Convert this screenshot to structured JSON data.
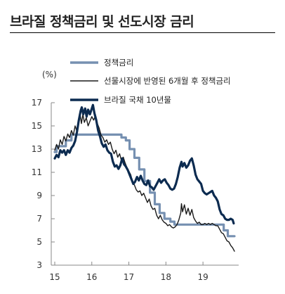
{
  "title": "브라질 정책금리 및 선도시장 금리",
  "chart_data": {
    "type": "line",
    "ylabel": "(%)",
    "ylim": [
      3,
      17
    ],
    "xlim": [
      2015.0,
      2019.85
    ],
    "yticks": [
      3,
      5,
      7,
      9,
      11,
      13,
      15,
      17
    ],
    "xticks": [
      {
        "value": 2015.0,
        "label": "15"
      },
      {
        "value": 2016.0,
        "label": "16"
      },
      {
        "value": 2017.0,
        "label": "17"
      },
      {
        "value": 2018.0,
        "label": "18"
      },
      {
        "value": 2019.0,
        "label": "19"
      }
    ],
    "grid": false,
    "legend_position": "top-center",
    "series": [
      {
        "name": "정책금리",
        "color": "#7690b1",
        "points": [
          [
            2015.0,
            12.75
          ],
          [
            2015.05,
            12.75
          ],
          [
            2015.05,
            13.25
          ],
          [
            2015.3,
            13.25
          ],
          [
            2015.3,
            13.75
          ],
          [
            2015.45,
            13.75
          ],
          [
            2015.45,
            14.25
          ],
          [
            2016.8,
            14.25
          ],
          [
            2016.8,
            14.0
          ],
          [
            2016.92,
            14.0
          ],
          [
            2016.92,
            13.75
          ],
          [
            2017.02,
            13.75
          ],
          [
            2017.02,
            13.0
          ],
          [
            2017.15,
            13.0
          ],
          [
            2017.15,
            12.25
          ],
          [
            2017.28,
            12.25
          ],
          [
            2017.28,
            11.25
          ],
          [
            2017.42,
            11.25
          ],
          [
            2017.42,
            10.25
          ],
          [
            2017.57,
            10.25
          ],
          [
            2017.57,
            9.25
          ],
          [
            2017.7,
            9.25
          ],
          [
            2017.7,
            8.25
          ],
          [
            2017.83,
            8.25
          ],
          [
            2017.83,
            7.5
          ],
          [
            2017.96,
            7.5
          ],
          [
            2017.96,
            7.0
          ],
          [
            2018.12,
            7.0
          ],
          [
            2018.12,
            6.75
          ],
          [
            2018.23,
            6.75
          ],
          [
            2018.23,
            6.5
          ],
          [
            2019.56,
            6.5
          ],
          [
            2019.56,
            6.0
          ],
          [
            2019.67,
            6.0
          ],
          [
            2019.67,
            5.5
          ],
          [
            2019.85,
            5.5
          ]
        ]
      },
      {
        "name": "선물시장에 반영된 6개월 후 정책금리",
        "color": "#1a1a1a",
        "points": [
          [
            2015.0,
            12.9
          ],
          [
            2015.05,
            13.4
          ],
          [
            2015.1,
            13.0
          ],
          [
            2015.15,
            13.8
          ],
          [
            2015.2,
            13.4
          ],
          [
            2015.25,
            14.1
          ],
          [
            2015.3,
            13.7
          ],
          [
            2015.35,
            14.3
          ],
          [
            2015.4,
            14.0
          ],
          [
            2015.45,
            14.6
          ],
          [
            2015.5,
            14.2
          ],
          [
            2015.55,
            15.0
          ],
          [
            2015.6,
            14.5
          ],
          [
            2015.65,
            15.7
          ],
          [
            2015.68,
            16.1
          ],
          [
            2015.72,
            15.2
          ],
          [
            2015.76,
            16.0
          ],
          [
            2015.8,
            15.3
          ],
          [
            2015.85,
            15.7
          ],
          [
            2015.9,
            15.0
          ],
          [
            2015.95,
            15.4
          ],
          [
            2016.0,
            15.8
          ],
          [
            2016.05,
            15.5
          ],
          [
            2016.1,
            15.9
          ],
          [
            2016.15,
            15.2
          ],
          [
            2016.2,
            14.8
          ],
          [
            2016.25,
            14.2
          ],
          [
            2016.3,
            14.0
          ],
          [
            2016.35,
            13.6
          ],
          [
            2016.4,
            13.8
          ],
          [
            2016.45,
            13.4
          ],
          [
            2016.5,
            13.6
          ],
          [
            2016.55,
            13.0
          ],
          [
            2016.6,
            12.6
          ],
          [
            2016.65,
            12.9
          ],
          [
            2016.7,
            12.3
          ],
          [
            2016.75,
            12.6
          ],
          [
            2016.8,
            12.0
          ],
          [
            2016.85,
            12.3
          ],
          [
            2016.9,
            11.8
          ],
          [
            2016.95,
            11.4
          ],
          [
            2017.0,
            11.1
          ],
          [
            2017.05,
            10.8
          ],
          [
            2017.1,
            10.2
          ],
          [
            2017.15,
            9.9
          ],
          [
            2017.2,
            9.5
          ],
          [
            2017.25,
            9.3
          ],
          [
            2017.3,
            9.4
          ],
          [
            2017.35,
            9.0
          ],
          [
            2017.4,
            9.2
          ],
          [
            2017.45,
            8.8
          ],
          [
            2017.5,
            8.4
          ],
          [
            2017.55,
            8.7
          ],
          [
            2017.6,
            8.1
          ],
          [
            2017.65,
            7.8
          ],
          [
            2017.7,
            7.9
          ],
          [
            2017.75,
            7.3
          ],
          [
            2017.8,
            7.0
          ],
          [
            2017.85,
            7.3
          ],
          [
            2017.9,
            6.9
          ],
          [
            2017.95,
            6.7
          ],
          [
            2018.0,
            6.6
          ],
          [
            2018.05,
            6.4
          ],
          [
            2018.1,
            6.5
          ],
          [
            2018.15,
            6.3
          ],
          [
            2018.2,
            6.2
          ],
          [
            2018.25,
            6.3
          ],
          [
            2018.3,
            6.5
          ],
          [
            2018.35,
            6.9
          ],
          [
            2018.4,
            7.5
          ],
          [
            2018.42,
            8.3
          ],
          [
            2018.45,
            7.6
          ],
          [
            2018.5,
            8.2
          ],
          [
            2018.55,
            7.4
          ],
          [
            2018.6,
            7.9
          ],
          [
            2018.65,
            7.3
          ],
          [
            2018.7,
            7.8
          ],
          [
            2018.75,
            7.1
          ],
          [
            2018.8,
            6.8
          ],
          [
            2018.85,
            6.6
          ],
          [
            2018.9,
            6.7
          ],
          [
            2018.95,
            6.5
          ],
          [
            2019.0,
            6.5
          ],
          [
            2019.05,
            6.6
          ],
          [
            2019.1,
            6.5
          ],
          [
            2019.15,
            6.6
          ],
          [
            2019.2,
            6.5
          ],
          [
            2019.25,
            6.6
          ],
          [
            2019.3,
            6.5
          ],
          [
            2019.35,
            6.4
          ],
          [
            2019.4,
            6.4
          ],
          [
            2019.45,
            6.1
          ],
          [
            2019.5,
            5.8
          ],
          [
            2019.55,
            5.7
          ],
          [
            2019.6,
            5.4
          ],
          [
            2019.65,
            5.1
          ],
          [
            2019.7,
            5.0
          ],
          [
            2019.75,
            4.7
          ],
          [
            2019.8,
            4.5
          ],
          [
            2019.85,
            4.2
          ]
        ]
      },
      {
        "name": "브라질 국채 10년물",
        "color": "#0c2b50",
        "points": [
          [
            2015.0,
            12.2
          ],
          [
            2015.05,
            12.5
          ],
          [
            2015.1,
            12.3
          ],
          [
            2015.15,
            12.9
          ],
          [
            2015.2,
            12.7
          ],
          [
            2015.25,
            12.9
          ],
          [
            2015.3,
            12.5
          ],
          [
            2015.35,
            12.9
          ],
          [
            2015.4,
            12.7
          ],
          [
            2015.45,
            13.1
          ],
          [
            2015.5,
            13.3
          ],
          [
            2015.55,
            13.7
          ],
          [
            2015.6,
            14.5
          ],
          [
            2015.65,
            15.5
          ],
          [
            2015.7,
            16.3
          ],
          [
            2015.73,
            16.6
          ],
          [
            2015.77,
            16.0
          ],
          [
            2015.82,
            16.5
          ],
          [
            2015.86,
            15.8
          ],
          [
            2015.9,
            16.4
          ],
          [
            2015.95,
            16.0
          ],
          [
            2016.0,
            16.5
          ],
          [
            2016.03,
            16.8
          ],
          [
            2016.07,
            16.1
          ],
          [
            2016.12,
            15.5
          ],
          [
            2016.17,
            14.6
          ],
          [
            2016.22,
            14.1
          ],
          [
            2016.27,
            13.5
          ],
          [
            2016.32,
            13.2
          ],
          [
            2016.37,
            13.4
          ],
          [
            2016.42,
            12.9
          ],
          [
            2016.47,
            12.7
          ],
          [
            2016.52,
            12.6
          ],
          [
            2016.57,
            11.9
          ],
          [
            2016.62,
            11.5
          ],
          [
            2016.67,
            11.6
          ],
          [
            2016.72,
            11.3
          ],
          [
            2016.77,
            11.6
          ],
          [
            2016.82,
            12.2
          ],
          [
            2016.87,
            11.7
          ],
          [
            2016.92,
            11.5
          ],
          [
            2016.97,
            11.2
          ],
          [
            2017.02,
            10.8
          ],
          [
            2017.07,
            10.4
          ],
          [
            2017.12,
            10.0
          ],
          [
            2017.17,
            10.2
          ],
          [
            2017.22,
            10.6
          ],
          [
            2017.27,
            10.3
          ],
          [
            2017.32,
            10.7
          ],
          [
            2017.37,
            10.3
          ],
          [
            2017.42,
            10.0
          ],
          [
            2017.47,
            9.9
          ],
          [
            2017.52,
            10.3
          ],
          [
            2017.57,
            9.8
          ],
          [
            2017.62,
            9.7
          ],
          [
            2017.67,
            9.5
          ],
          [
            2017.72,
            9.8
          ],
          [
            2017.77,
            10.1
          ],
          [
            2017.82,
            10.4
          ],
          [
            2017.87,
            10.1
          ],
          [
            2017.92,
            10.3
          ],
          [
            2017.97,
            10.4
          ],
          [
            2018.02,
            10.1
          ],
          [
            2018.07,
            9.9
          ],
          [
            2018.12,
            9.6
          ],
          [
            2018.17,
            9.5
          ],
          [
            2018.22,
            9.6
          ],
          [
            2018.27,
            10.0
          ],
          [
            2018.32,
            10.6
          ],
          [
            2018.37,
            11.4
          ],
          [
            2018.42,
            11.9
          ],
          [
            2018.45,
            11.5
          ],
          [
            2018.5,
            11.8
          ],
          [
            2018.55,
            11.4
          ],
          [
            2018.6,
            11.6
          ],
          [
            2018.65,
            12.0
          ],
          [
            2018.7,
            12.2
          ],
          [
            2018.75,
            11.6
          ],
          [
            2018.8,
            10.8
          ],
          [
            2018.85,
            10.4
          ],
          [
            2018.9,
            10.2
          ],
          [
            2018.95,
            10.0
          ],
          [
            2019.0,
            9.4
          ],
          [
            2019.05,
            9.2
          ],
          [
            2019.1,
            9.1
          ],
          [
            2019.15,
            9.2
          ],
          [
            2019.2,
            9.3
          ],
          [
            2019.25,
            9.4
          ],
          [
            2019.3,
            9.0
          ],
          [
            2019.35,
            8.8
          ],
          [
            2019.4,
            8.5
          ],
          [
            2019.45,
            7.8
          ],
          [
            2019.5,
            7.4
          ],
          [
            2019.55,
            7.3
          ],
          [
            2019.6,
            7.0
          ],
          [
            2019.65,
            6.9
          ],
          [
            2019.7,
            6.9
          ],
          [
            2019.75,
            7.0
          ],
          [
            2019.8,
            6.9
          ],
          [
            2019.83,
            6.6
          ]
        ]
      }
    ]
  }
}
